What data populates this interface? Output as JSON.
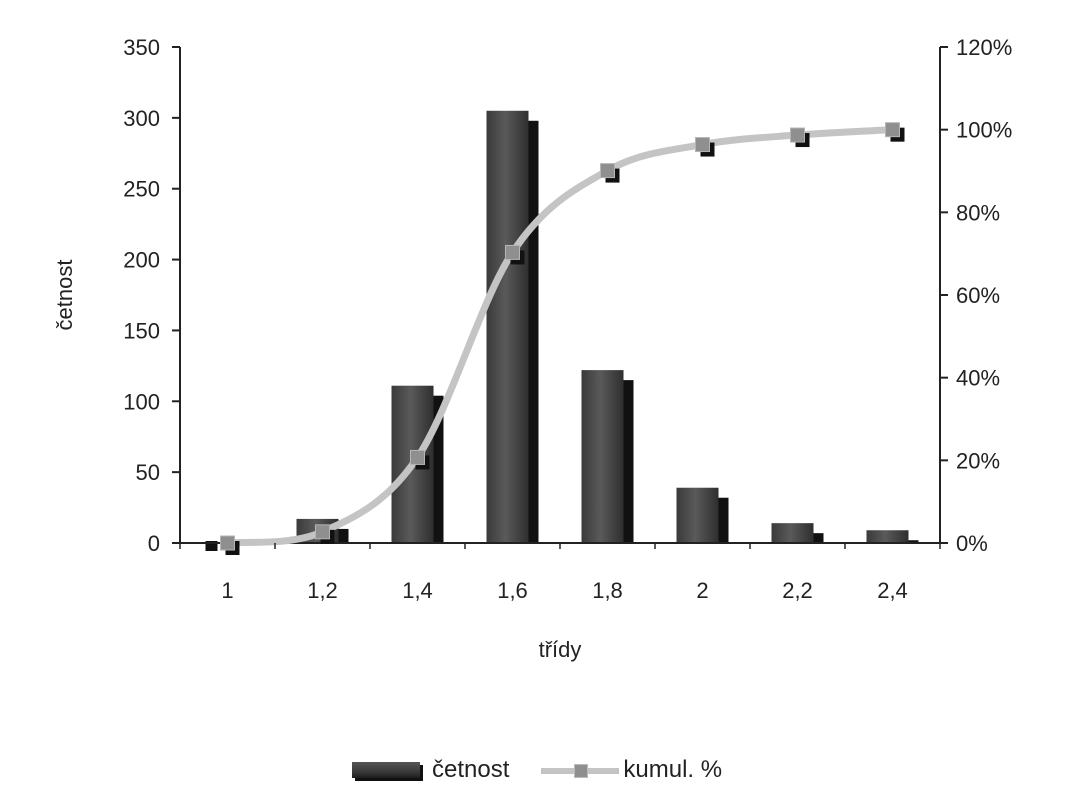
{
  "chart_data": {
    "type": "bar+line",
    "categories": [
      "1",
      "1,2",
      "1,4",
      "1,6",
      "1,8",
      "2",
      "2,2",
      "2,4"
    ],
    "series": [
      {
        "name": "četnost",
        "type": "bar",
        "axis": "left",
        "values": [
          0,
          17,
          111,
          305,
          122,
          39,
          14,
          9
        ]
      },
      {
        "name": "kumul. %",
        "type": "line",
        "axis": "right",
        "values": [
          0,
          2.7,
          20.7,
          70.3,
          90.1,
          96.4,
          98.7,
          100
        ]
      }
    ],
    "xlabel": "třídy",
    "ylabel": "četnost",
    "ylim": [
      0,
      350
    ],
    "y2lim": [
      0,
      120
    ],
    "yticks": [
      "0",
      "50",
      "100",
      "150",
      "200",
      "250",
      "300",
      "350"
    ],
    "y2ticks": [
      "0%",
      "20%",
      "40%",
      "60%",
      "80%",
      "100%",
      "120%"
    ],
    "legend_position": "bottom",
    "grid": false,
    "colors": {
      "bar": "#3c3c3c",
      "bar_shadow": "#111111",
      "line": "#c4c4c4",
      "marker": "#8f8f8f"
    }
  },
  "legend": {
    "bar_label": "četnost",
    "line_label": "kumul. %"
  }
}
